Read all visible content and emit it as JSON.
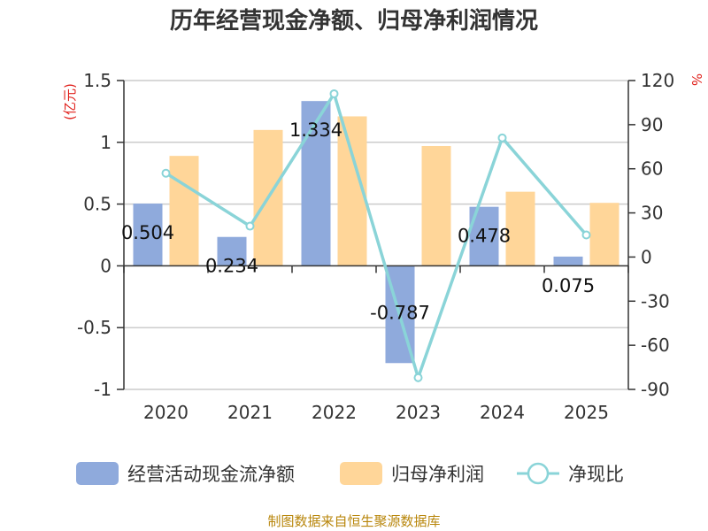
{
  "chart_data": {
    "type": "bar",
    "title": "历年经营现金净额、归母净利润情况",
    "categories": [
      "2020",
      "2021",
      "2022",
      "2023",
      "2024",
      "2025"
    ],
    "series": [
      {
        "name": "经营活动现金流净额",
        "type": "bar",
        "axis": "left",
        "color": "#8faadc",
        "values": [
          0.504,
          0.234,
          1.334,
          -0.787,
          0.478,
          0.075
        ],
        "labels": [
          "0.504",
          "0.234",
          "1.334",
          "-0.787",
          "0.478",
          "0.075"
        ]
      },
      {
        "name": "归母净利润",
        "type": "bar",
        "axis": "left",
        "color": "#ffd699",
        "values": [
          0.89,
          1.1,
          1.21,
          0.97,
          0.6,
          0.51
        ]
      },
      {
        "name": "净现比",
        "type": "line",
        "axis": "right",
        "color": "#8ad4d8",
        "values": [
          57,
          21,
          111,
          -82,
          81,
          15
        ]
      }
    ],
    "left_axis": {
      "unit": "(亿元)",
      "min": -1,
      "max": 1.5,
      "ticks": [
        1.5,
        1,
        0.5,
        0,
        -0.5,
        -1
      ],
      "tick_labels": [
        "1.5",
        "1",
        "0.5",
        "0",
        "-0.5",
        "-1"
      ]
    },
    "right_axis": {
      "unit": "%",
      "min": -90,
      "max": 120,
      "ticks": [
        120,
        90,
        60,
        30,
        0,
        -30,
        -60,
        -90
      ],
      "tick_labels": [
        "120",
        "90",
        "60",
        "30",
        "0",
        "-30",
        "-60",
        "-90"
      ]
    },
    "grid": true,
    "legend": "bottom",
    "source": "制图数据来自恒生聚源数据库"
  }
}
